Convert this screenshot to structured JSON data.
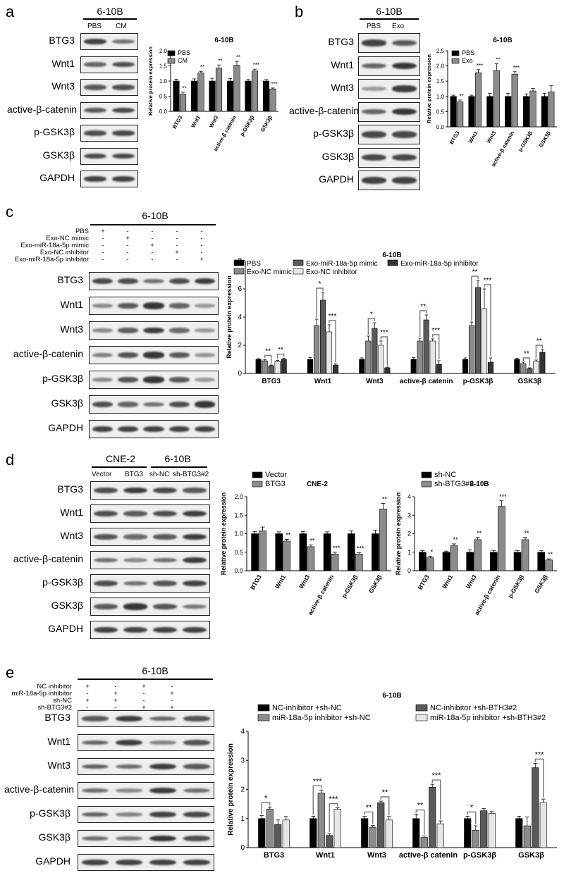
{
  "panels": [
    {
      "letter": "a",
      "group_header": "6-10B",
      "lanes": [
        "PBS",
        "CM"
      ],
      "rows": [
        "BTG3",
        "Wnt1",
        "Wnt3",
        "active-β-catenin",
        "p-GSK3β",
        "GSK3β",
        "GAPDH"
      ]
    },
    {
      "letter": "b",
      "group_header": "6-10B",
      "lanes": [
        "PBS",
        "Exo"
      ],
      "rows": [
        "BTG3",
        "Wnt1",
        "Wnt3",
        "active-β-catenin",
        "p-GSK3β",
        "GSK3β",
        "GAPDH"
      ]
    },
    {
      "letter": "c",
      "group_header": "6-10B",
      "conditions": [
        {
          "name": "PBS",
          "signs": [
            "+",
            "-",
            "-",
            "-",
            "-"
          ]
        },
        {
          "name": "Exo-NC mimic",
          "signs": [
            "-",
            "+",
            "-",
            "-",
            "-"
          ]
        },
        {
          "name": "Exo-miR-18a-5p mimic",
          "signs": [
            "-",
            "-",
            "+",
            "-",
            "-"
          ]
        },
        {
          "name": "Exo-NC inhibitor",
          "signs": [
            "-",
            "-",
            "-",
            "+",
            "-"
          ]
        },
        {
          "name": "Exo-miR-18a-5p inhibitor",
          "signs": [
            "-",
            "-",
            "-",
            "-",
            "+"
          ]
        }
      ],
      "rows": [
        "BTG3",
        "Wnt1",
        "Wnt3",
        "active-β-catenin",
        "p-GSK3β",
        "GSK3β",
        "GAPDH"
      ]
    },
    {
      "letter": "d",
      "group_headers": [
        "CNE-2",
        "6-10B"
      ],
      "lanes": [
        "Vector",
        "BTG3",
        "sh-NC",
        "sh-BTG3#2"
      ],
      "rows": [
        "BTG3",
        "Wnt1",
        "Wnt3",
        "active-β-catenin",
        "p-GSK3β",
        "GSK3β",
        "GAPDH"
      ]
    },
    {
      "letter": "e",
      "group_header": "6-10B",
      "conditions": [
        {
          "name": "NC inhibitor",
          "signs": [
            "+",
            "-",
            "+",
            "-"
          ]
        },
        {
          "name": "miR-18a-5p inhibitor",
          "signs": [
            "-",
            "+",
            "-",
            "+"
          ]
        },
        {
          "name": "sh-NC",
          "signs": [
            "+",
            "+",
            "-",
            "-"
          ]
        },
        {
          "name": "sh-BTG3#2",
          "signs": [
            "-",
            "-",
            "+",
            "+"
          ]
        }
      ],
      "rows": [
        "BTG3",
        "Wnt1",
        "Wnt3",
        "active-β-catenin",
        "p-GSK3β",
        "GSK3β",
        "GAPDH"
      ]
    }
  ],
  "chart_data": [
    {
      "id": "a",
      "type": "bar",
      "title": "6-10B",
      "ylabel": "Relative protein expression",
      "ylim": [
        0,
        2.0
      ],
      "yticks": [
        "0.0",
        "0.5",
        "1.0",
        "1.5",
        "2.0"
      ],
      "categories": [
        "BTG3",
        "Wnt1",
        "Wnt3",
        "active-β catenin",
        "p-GSK3β",
        "GSK3β"
      ],
      "series": [
        {
          "name": "PBS",
          "color": "#000000",
          "values": [
            1.0,
            1.0,
            1.0,
            1.0,
            1.0,
            1.0
          ],
          "errors": [
            0.06,
            0.07,
            0.09,
            0.08,
            0.05,
            0.05
          ]
        },
        {
          "name": "CM",
          "color": "#8c8c8c",
          "values": [
            0.57,
            1.27,
            1.43,
            1.52,
            1.33,
            0.74
          ],
          "errors": [
            0.06,
            0.05,
            0.1,
            0.13,
            0.06,
            0.03
          ]
        }
      ],
      "significance": [
        "**",
        "**",
        "**",
        "**",
        "***",
        "***"
      ],
      "legend_position": "top-left"
    },
    {
      "id": "b",
      "type": "bar",
      "title": "6-10B",
      "ylabel": "Relative protein expression",
      "ylim": [
        0,
        2.5
      ],
      "yticks": [
        "0.0",
        "0.5",
        "1.0",
        "1.5",
        "2.0",
        "2.5"
      ],
      "categories": [
        "BTG3",
        "Wnt1",
        "Wnt3",
        "active-β catenin",
        "p-GSK3β",
        "GSK3β"
      ],
      "series": [
        {
          "name": "PBS",
          "color": "#000000",
          "values": [
            1.0,
            1.0,
            1.0,
            1.0,
            1.0,
            1.0
          ],
          "errors": [
            0.04,
            0.04,
            0.1,
            0.1,
            0.08,
            0.1
          ]
        },
        {
          "name": "Exo",
          "color": "#8c8c8c",
          "values": [
            0.82,
            1.78,
            1.85,
            1.73,
            1.18,
            1.15
          ],
          "errors": [
            0.06,
            0.1,
            0.22,
            0.08,
            0.08,
            0.2
          ]
        }
      ],
      "significance": [
        "**",
        "***",
        "**",
        "***",
        "",
        ""
      ],
      "legend_position": "top-left"
    },
    {
      "id": "c",
      "type": "bar",
      "title": "6-10B",
      "ylabel": "Relative protein expression",
      "ylim": [
        0,
        8
      ],
      "yticks": [
        "0",
        "2",
        "4",
        "6",
        "8"
      ],
      "categories": [
        "BTG3",
        "Wnt1",
        "Wnt3",
        "active-β catenin",
        "p-GSK3β",
        "GSK3β"
      ],
      "series": [
        {
          "name": "PBS",
          "color": "#000000",
          "values": [
            1.0,
            1.0,
            1.0,
            1.0,
            1.0,
            1.0
          ],
          "errors": [
            0.05,
            0.12,
            0.1,
            0.12,
            0.1,
            0.08
          ]
        },
        {
          "name": "Exo-NC mimic",
          "color": "#8c8c8c",
          "values": [
            0.9,
            3.4,
            2.3,
            2.3,
            3.4,
            0.7
          ],
          "errors": [
            0.08,
            0.45,
            0.35,
            0.2,
            0.25,
            0.1
          ]
        },
        {
          "name": "Exo-miR-18a-5p mimic",
          "color": "#5a5a5a",
          "values": [
            0.55,
            5.2,
            3.2,
            3.8,
            6.1,
            0.35
          ],
          "errors": [
            0.05,
            0.55,
            0.4,
            0.35,
            0.5,
            0.05
          ]
        },
        {
          "name": "Exo-NC inhibitor",
          "color": "#e6e6e6",
          "values": [
            0.85,
            2.95,
            2.0,
            2.3,
            4.6,
            0.85
          ],
          "errors": [
            0.07,
            0.5,
            0.3,
            0.15,
            1.4,
            0.1
          ]
        },
        {
          "name": "Exo-miR-18a-5p inhibitor",
          "color": "#333333",
          "values": [
            1.0,
            0.6,
            0.4,
            0.65,
            0.8,
            1.5
          ],
          "errors": [
            0.07,
            0.08,
            0.05,
            0.25,
            0.3,
            0.2
          ]
        }
      ],
      "significance_brackets": [
        {
          "category": 0,
          "from": 1,
          "to": 2,
          "label": "**"
        },
        {
          "category": 0,
          "from": 3,
          "to": 4,
          "label": "**"
        },
        {
          "category": 1,
          "from": 1,
          "to": 2,
          "label": "*"
        },
        {
          "category": 1,
          "from": 3,
          "to": 4,
          "label": "***"
        },
        {
          "category": 2,
          "from": 1,
          "to": 2,
          "label": "*"
        },
        {
          "category": 2,
          "from": 3,
          "to": 4,
          "label": "***"
        },
        {
          "category": 3,
          "from": 1,
          "to": 2,
          "label": "**"
        },
        {
          "category": 3,
          "from": 3,
          "to": 4,
          "label": "***"
        },
        {
          "category": 4,
          "from": 1,
          "to": 2,
          "label": "**"
        },
        {
          "category": 4,
          "from": 3,
          "to": 4,
          "label": "***"
        },
        {
          "category": 5,
          "from": 1,
          "to": 2,
          "label": "**"
        },
        {
          "category": 5,
          "from": 3,
          "to": 4,
          "label": "**"
        }
      ],
      "legend_position": "top"
    },
    {
      "id": "d1",
      "type": "bar",
      "title": "CNE-2",
      "ylabel": "Relative protein expression",
      "ylim": [
        0,
        2.0
      ],
      "yticks": [
        "0.0",
        "0.5",
        "1.0",
        "1.5",
        "2.0"
      ],
      "categories": [
        "BTG3",
        "Wnt1",
        "Wnt3",
        "active-β catenin",
        "p-GSK3β",
        "GSK3β"
      ],
      "series": [
        {
          "name": "Vector",
          "color": "#000000",
          "values": [
            1.0,
            1.0,
            1.0,
            1.0,
            1.0,
            1.0
          ],
          "errors": [
            0.06,
            0.05,
            0.06,
            0.05,
            0.08,
            0.1
          ]
        },
        {
          "name": "BTG3",
          "color": "#8c8c8c",
          "values": [
            1.08,
            0.8,
            0.65,
            0.45,
            0.45,
            1.67
          ],
          "errors": [
            0.1,
            0.05,
            0.05,
            0.05,
            0.04,
            0.15
          ]
        }
      ],
      "significance": [
        "",
        "**",
        "**",
        "***",
        "***",
        "**"
      ],
      "legend_position": "top-left"
    },
    {
      "id": "d2",
      "type": "bar",
      "title": "6-10B",
      "ylabel": "Relative protein expression",
      "ylim": [
        0,
        4
      ],
      "yticks": [
        "0",
        "1",
        "2",
        "3",
        "4"
      ],
      "categories": [
        "BTG3",
        "Wnt1",
        "Wnt3",
        "active-β catenin",
        "p-GSK3β",
        "GSK3β"
      ],
      "series": [
        {
          "name": "sh-NC",
          "color": "#000000",
          "values": [
            1.0,
            1.0,
            1.0,
            1.0,
            1.0,
            1.0
          ],
          "errors": [
            0.08,
            0.06,
            0.12,
            0.08,
            0.08,
            0.08
          ]
        },
        {
          "name": "sh-BTG3#2",
          "color": "#8c8c8c",
          "values": [
            0.7,
            1.35,
            1.68,
            3.48,
            1.68,
            0.58
          ],
          "errors": [
            0.08,
            0.1,
            0.12,
            0.3,
            0.12,
            0.06
          ]
        }
      ],
      "significance": [
        "*",
        "**",
        "**",
        "***",
        "**",
        "**"
      ],
      "legend_position": "top-left"
    },
    {
      "id": "e",
      "type": "bar",
      "title": "6-10B",
      "ylabel": "Relative protein expression",
      "ylim": [
        0,
        4
      ],
      "yticks": [
        "0",
        "1",
        "2",
        "3",
        "4"
      ],
      "categories": [
        "BTG3",
        "Wnt1",
        "Wnt3",
        "active-β catenin",
        "p-GSK3β",
        "GSK3β"
      ],
      "series": [
        {
          "name": "NC-inhibitor +sh-NC",
          "color": "#000000",
          "values": [
            1.0,
            1.0,
            1.0,
            1.0,
            1.0,
            1.0
          ],
          "errors": [
            0.1,
            0.08,
            0.08,
            0.15,
            0.08,
            0.08
          ]
        },
        {
          "name": "miR-18a-5p inhibitor +sh-NC",
          "color": "#8c8c8c",
          "values": [
            1.32,
            1.88,
            0.7,
            0.35,
            0.6,
            0.75
          ],
          "errors": [
            0.08,
            0.1,
            0.06,
            0.05,
            0.15,
            0.3
          ]
        },
        {
          "name": "NC-inhibitor +sh-BTH3#2",
          "color": "#5a5a5a",
          "values": [
            0.8,
            0.42,
            1.55,
            2.08,
            1.27,
            2.75
          ],
          "errors": [
            0.15,
            0.06,
            0.05,
            0.1,
            0.08,
            0.15
          ]
        },
        {
          "name": "miR-18a-5p inhibitor +sh-BTH3#2",
          "color": "#e6e6e6",
          "values": [
            0.95,
            1.32,
            0.95,
            0.82,
            1.18,
            1.55
          ],
          "errors": [
            0.12,
            0.05,
            0.12,
            0.1,
            0.06,
            0.12
          ]
        }
      ],
      "significance_brackets": [
        {
          "category": 0,
          "from": 0,
          "to": 1,
          "label": "*"
        },
        {
          "category": 1,
          "from": 0,
          "to": 1,
          "label": "***"
        },
        {
          "category": 1,
          "from": 2,
          "to": 3,
          "label": "***"
        },
        {
          "category": 2,
          "from": 0,
          "to": 1,
          "label": "**"
        },
        {
          "category": 2,
          "from": 2,
          "to": 3,
          "label": "**"
        },
        {
          "category": 3,
          "from": 0,
          "to": 1,
          "label": "**"
        },
        {
          "category": 3,
          "from": 2,
          "to": 3,
          "label": "***"
        },
        {
          "category": 4,
          "from": 0,
          "to": 1,
          "label": "*"
        },
        {
          "category": 5,
          "from": 2,
          "to": 3,
          "label": "***"
        }
      ],
      "legend_position": "top"
    }
  ]
}
